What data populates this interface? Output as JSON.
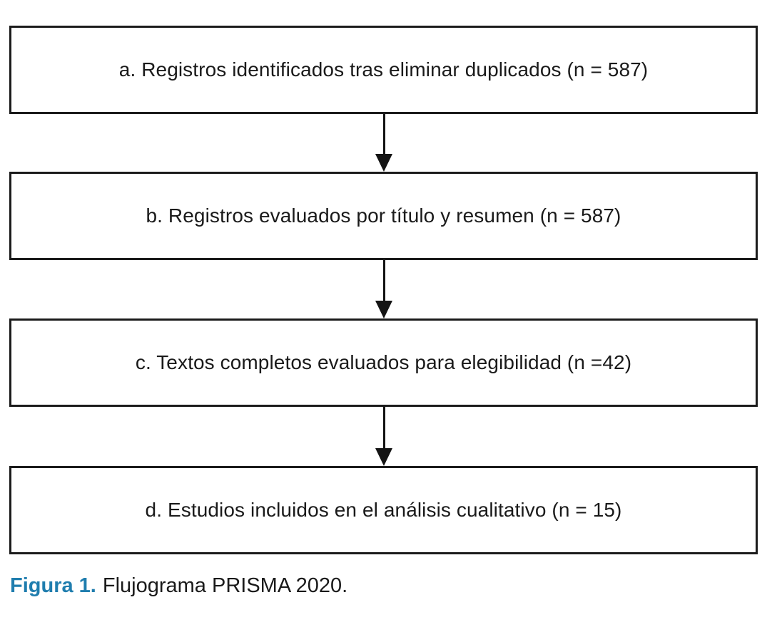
{
  "figure": {
    "type": "flowchart",
    "direction": "top-down",
    "boxes": [
      {
        "id": "a",
        "label": "a. Registros identificados tras eliminar duplicados (n = 587)",
        "n": 587
      },
      {
        "id": "b",
        "label": "b. Registros evaluados por título y resumen (n = 587)",
        "n": 587
      },
      {
        "id": "c",
        "label": "c. Textos completos evaluados para elegibilidad (n =42)",
        "n": 42
      },
      {
        "id": "d",
        "label": "d. Estudios incluidos en el análisis cualitativo (n = 15)",
        "n": 15
      }
    ],
    "connectors": [
      {
        "from": "a",
        "to": "b",
        "style": "down-arrow"
      },
      {
        "from": "b",
        "to": "c",
        "style": "down-arrow"
      },
      {
        "from": "c",
        "to": "d",
        "style": "down-arrow"
      }
    ],
    "caption": {
      "prefix": "Figura 1.",
      "text": "Flujograma PRISMA 2020.",
      "accent_color": "#1f7dae"
    },
    "colors": {
      "box_border": "#1b1b1b",
      "arrow": "#141414",
      "text": "#1a1a1a",
      "background": "#ffffff"
    }
  }
}
